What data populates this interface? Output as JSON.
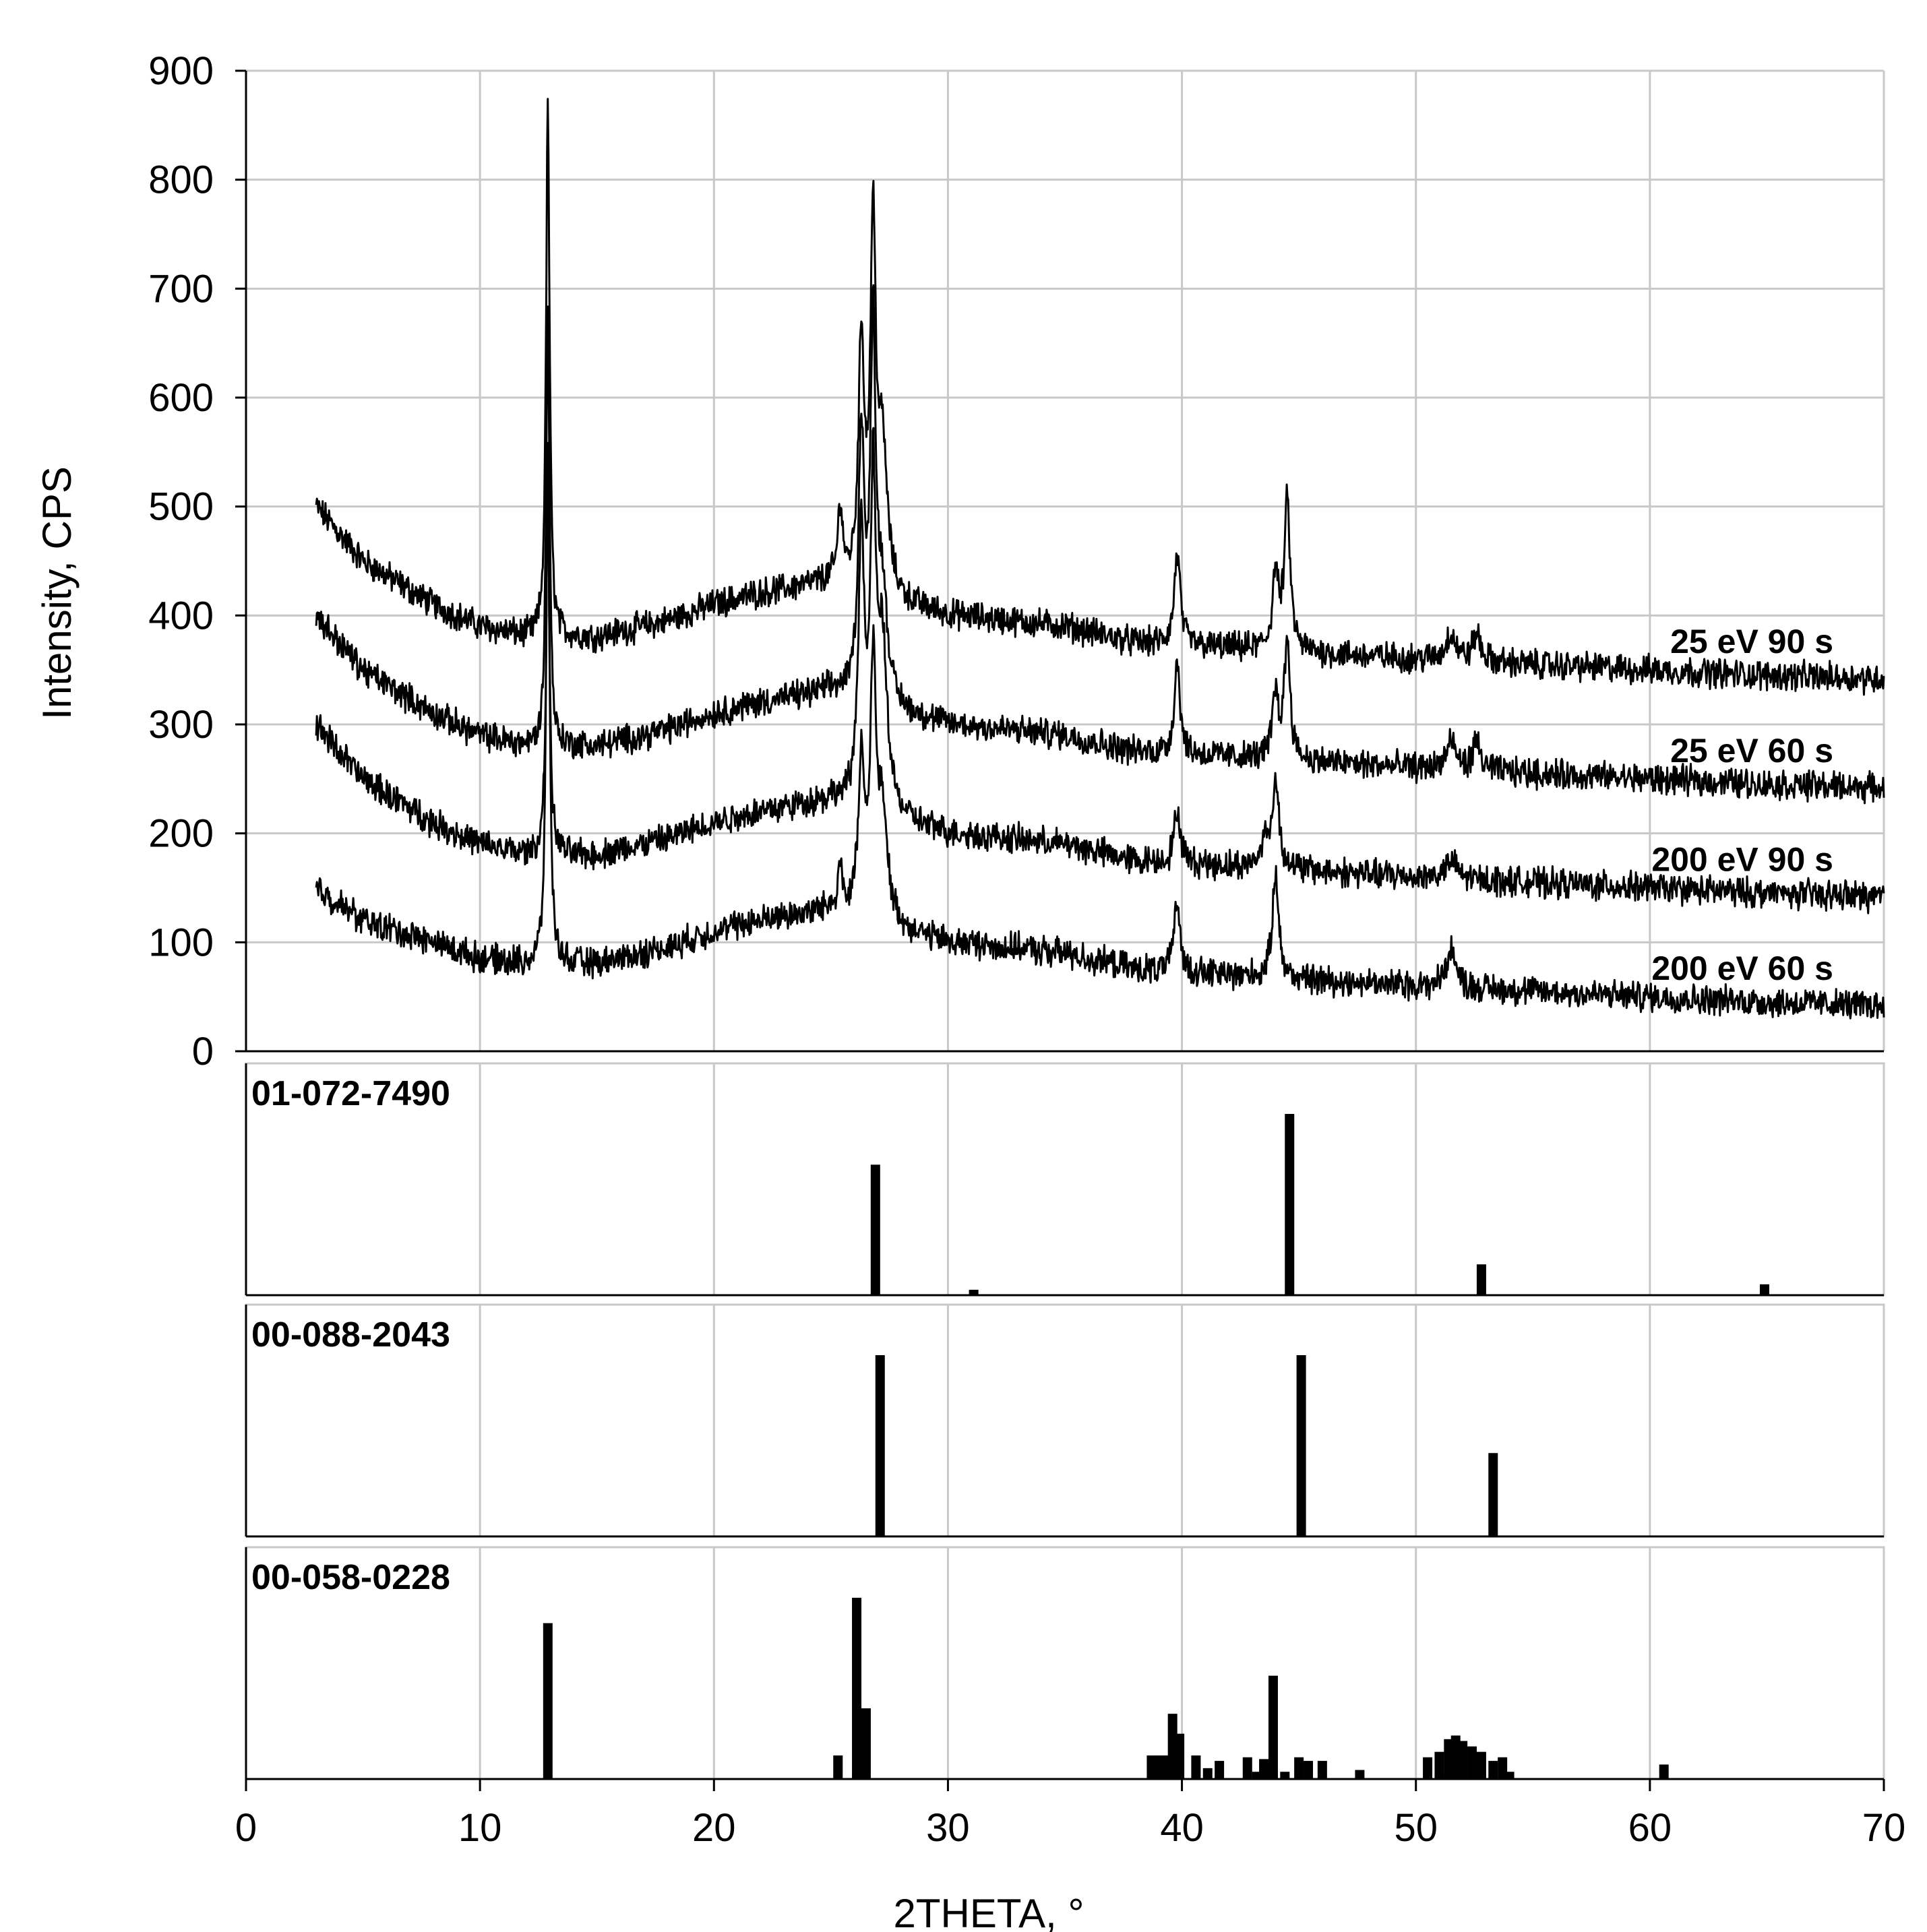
{
  "chart_data": {
    "type": "line",
    "xlabel": "2THETA, °",
    "ylabel": "Intensity, CPS",
    "xlim": [
      0,
      70
    ],
    "x_ticks": [
      "0",
      "10",
      "20",
      "30",
      "40",
      "50",
      "60",
      "70"
    ],
    "ylim": [
      0,
      900
    ],
    "y_ticks": [
      "0",
      "100",
      "200",
      "300",
      "400",
      "500",
      "600",
      "700",
      "800",
      "900"
    ],
    "grid": true,
    "x_range_measured": [
      3,
      70
    ],
    "series": [
      {
        "name": "25 eV 90 s",
        "offset": 300,
        "color": "#000000",
        "baseline": [
          [
            3,
            200
          ],
          [
            5,
            150
          ],
          [
            8,
            110
          ],
          [
            10,
            90
          ],
          [
            12,
            80
          ],
          [
            15,
            80
          ],
          [
            18,
            95
          ],
          [
            20,
            110
          ],
          [
            22,
            120
          ],
          [
            25,
            130
          ],
          [
            28,
            110
          ],
          [
            30,
            100
          ],
          [
            35,
            90
          ],
          [
            38,
            75
          ],
          [
            42,
            70
          ],
          [
            46,
            65
          ],
          [
            50,
            60
          ],
          [
            55,
            55
          ],
          [
            60,
            50
          ],
          [
            65,
            45
          ],
          [
            70,
            42
          ]
        ],
        "peaks": [
          [
            12.9,
            490,
            0.09
          ],
          [
            25.4,
            70,
            0.12
          ],
          [
            26.3,
            220,
            0.15
          ],
          [
            26.8,
            320,
            0.14
          ],
          [
            27.2,
            130,
            0.25
          ],
          [
            39.8,
            85,
            0.15
          ],
          [
            44.0,
            70,
            0.15
          ],
          [
            44.5,
            135,
            0.15
          ],
          [
            51.5,
            25,
            0.25
          ],
          [
            52.6,
            25,
            0.2
          ]
        ]
      },
      {
        "name": "25 eV 60 s",
        "offset": 200,
        "color": "#000000",
        "baseline": [
          [
            3,
            200
          ],
          [
            5,
            150
          ],
          [
            8,
            110
          ],
          [
            10,
            90
          ],
          [
            12,
            80
          ],
          [
            15,
            80
          ],
          [
            18,
            95
          ],
          [
            20,
            110
          ],
          [
            22,
            120
          ],
          [
            25,
            130
          ],
          [
            28,
            110
          ],
          [
            30,
            100
          ],
          [
            35,
            90
          ],
          [
            38,
            75
          ],
          [
            42,
            70
          ],
          [
            46,
            65
          ],
          [
            50,
            60
          ],
          [
            55,
            55
          ],
          [
            60,
            50
          ],
          [
            65,
            45
          ],
          [
            70,
            42
          ]
        ],
        "peaks": [
          [
            12.9,
            400,
            0.09
          ],
          [
            26.3,
            240,
            0.15
          ],
          [
            26.8,
            330,
            0.14
          ],
          [
            27.2,
            100,
            0.25
          ],
          [
            39.8,
            85,
            0.15
          ],
          [
            44.0,
            60,
            0.15
          ],
          [
            44.5,
            110,
            0.15
          ],
          [
            51.5,
            25,
            0.25
          ],
          [
            52.6,
            25,
            0.2
          ]
        ]
      },
      {
        "name": "200 eV 90 s",
        "offset": 100,
        "color": "#000000",
        "baseline": [
          [
            3,
            200
          ],
          [
            5,
            150
          ],
          [
            8,
            110
          ],
          [
            10,
            90
          ],
          [
            12,
            80
          ],
          [
            15,
            80
          ],
          [
            18,
            95
          ],
          [
            20,
            110
          ],
          [
            22,
            120
          ],
          [
            25,
            130
          ],
          [
            28,
            110
          ],
          [
            30,
            100
          ],
          [
            35,
            90
          ],
          [
            38,
            75
          ],
          [
            42,
            70
          ],
          [
            46,
            65
          ],
          [
            50,
            60
          ],
          [
            55,
            55
          ],
          [
            60,
            50
          ],
          [
            65,
            45
          ],
          [
            70,
            42
          ]
        ],
        "peaks": [
          [
            12.9,
            330,
            0.09
          ],
          [
            26.3,
            250,
            0.15
          ],
          [
            26.8,
            280,
            0.14
          ],
          [
            27.2,
            150,
            0.25
          ],
          [
            39.8,
            50,
            0.15
          ],
          [
            43.5,
            25,
            0.15
          ],
          [
            44.0,
            80,
            0.18
          ],
          [
            51.5,
            15,
            0.3
          ]
        ]
      },
      {
        "name": "200 eV 60 s",
        "offset": 0,
        "color": "#000000",
        "baseline": [
          [
            3,
            150
          ],
          [
            5,
            120
          ],
          [
            8,
            100
          ],
          [
            10,
            85
          ],
          [
            12,
            80
          ],
          [
            15,
            80
          ],
          [
            18,
            95
          ],
          [
            20,
            110
          ],
          [
            22,
            120
          ],
          [
            25,
            130
          ],
          [
            28,
            110
          ],
          [
            30,
            100
          ],
          [
            35,
            90
          ],
          [
            38,
            75
          ],
          [
            42,
            70
          ],
          [
            46,
            65
          ],
          [
            50,
            60
          ],
          [
            55,
            55
          ],
          [
            60,
            50
          ],
          [
            65,
            45
          ],
          [
            70,
            42
          ]
        ],
        "peaks": [
          [
            12.9,
            470,
            0.09
          ],
          [
            25.4,
            40,
            0.12
          ],
          [
            26.3,
            140,
            0.15
          ],
          [
            26.8,
            230,
            0.14
          ],
          [
            27.2,
            100,
            0.25
          ],
          [
            39.8,
            65,
            0.15
          ],
          [
            44.0,
            100,
            0.15
          ],
          [
            51.5,
            35,
            0.25
          ]
        ]
      }
    ],
    "reference_patterns": [
      {
        "label": "01-072-7490",
        "lines": [
          [
            26.9,
            0.72
          ],
          [
            31.1,
            0.03
          ],
          [
            44.6,
            1.0
          ],
          [
            52.8,
            0.17
          ],
          [
            64.9,
            0.06
          ]
        ]
      },
      {
        "label": "00-088-2043",
        "lines": [
          [
            27.1,
            1.0
          ],
          [
            45.1,
            1.0
          ],
          [
            53.3,
            0.46
          ]
        ]
      },
      {
        "label": "00-058-0228",
        "lines": [
          [
            12.9,
            0.86
          ],
          [
            25.3,
            0.13
          ],
          [
            26.1,
            1.0
          ],
          [
            26.5,
            0.39
          ],
          [
            38.7,
            0.13
          ],
          [
            39.0,
            0.13
          ],
          [
            39.3,
            0.13
          ],
          [
            39.6,
            0.36
          ],
          [
            39.9,
            0.25
          ],
          [
            40.6,
            0.13
          ],
          [
            41.1,
            0.06
          ],
          [
            41.6,
            0.1
          ],
          [
            42.8,
            0.12
          ],
          [
            43.2,
            0.04
          ],
          [
            43.5,
            0.11
          ],
          [
            43.9,
            0.57
          ],
          [
            44.4,
            0.04
          ],
          [
            45.0,
            0.12
          ],
          [
            45.4,
            0.1
          ],
          [
            46.0,
            0.1
          ],
          [
            47.6,
            0.05
          ],
          [
            50.5,
            0.12
          ],
          [
            51.0,
            0.15
          ],
          [
            51.4,
            0.22
          ],
          [
            51.7,
            0.24
          ],
          [
            52.0,
            0.21
          ],
          [
            52.4,
            0.18
          ],
          [
            52.8,
            0.15
          ],
          [
            53.3,
            0.1
          ],
          [
            53.7,
            0.12
          ],
          [
            54.0,
            0.04
          ],
          [
            60.6,
            0.08
          ]
        ]
      }
    ]
  }
}
